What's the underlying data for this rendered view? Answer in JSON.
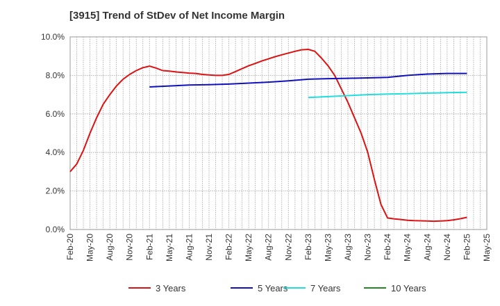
{
  "chart_data": {
    "type": "line",
    "title": "[3915]  Trend of StDev of Net Income Margin",
    "xlabel": "",
    "ylabel": "",
    "x_ticks": [
      "Feb-20",
      "May-20",
      "Aug-20",
      "Nov-20",
      "Feb-21",
      "May-21",
      "Aug-21",
      "Nov-21",
      "Feb-22",
      "May-22",
      "Aug-22",
      "Nov-22",
      "Feb-23",
      "May-23",
      "Aug-23",
      "Nov-23",
      "Feb-24",
      "May-24",
      "Aug-24",
      "Nov-24",
      "Feb-25",
      "May-25"
    ],
    "y_ticks": [
      "0.0%",
      "2.0%",
      "4.0%",
      "6.0%",
      "8.0%",
      "10.0%"
    ],
    "ylim": [
      0,
      10
    ],
    "grid": true,
    "legend_position": "bottom",
    "series": [
      {
        "name": "3 Years",
        "color": "#dd1111",
        "x": [
          "2020-02",
          "2020-03",
          "2020-04",
          "2020-05",
          "2020-06",
          "2020-07",
          "2020-08",
          "2020-09",
          "2020-10",
          "2020-11",
          "2020-12",
          "2021-01",
          "2021-02",
          "2021-03",
          "2021-04",
          "2021-05",
          "2021-06",
          "2021-07",
          "2021-08",
          "2021-09",
          "2021-10",
          "2021-11",
          "2021-12",
          "2022-01",
          "2022-02",
          "2022-03",
          "2022-04",
          "2022-05",
          "2022-06",
          "2022-07",
          "2022-08",
          "2022-09",
          "2022-10",
          "2022-11",
          "2022-12",
          "2023-01",
          "2023-02",
          "2023-03",
          "2023-04",
          "2023-05",
          "2023-06",
          "2023-07",
          "2023-08",
          "2023-09",
          "2023-10",
          "2023-11",
          "2023-12",
          "2024-01",
          "2024-02",
          "2024-03",
          "2024-04",
          "2024-05",
          "2024-06",
          "2024-07",
          "2024-08",
          "2024-09",
          "2024-10",
          "2024-11",
          "2024-12",
          "2025-01",
          "2025-02"
        ],
        "values": [
          3.0,
          3.4,
          4.1,
          5.0,
          5.8,
          6.5,
          7.0,
          7.45,
          7.8,
          8.05,
          8.25,
          8.4,
          8.48,
          8.38,
          8.25,
          8.22,
          8.18,
          8.15,
          8.12,
          8.1,
          8.05,
          8.02,
          8.0,
          8.0,
          8.05,
          8.2,
          8.35,
          8.5,
          8.62,
          8.75,
          8.86,
          8.97,
          9.07,
          9.16,
          9.25,
          9.33,
          9.35,
          9.25,
          8.9,
          8.5,
          8.0,
          7.3,
          6.6,
          5.8,
          5.0,
          4.0,
          2.6,
          1.3,
          0.6,
          0.55,
          0.52,
          0.48,
          0.46,
          0.45,
          0.44,
          0.43,
          0.44,
          0.46,
          0.5,
          0.56,
          0.63
        ]
      },
      {
        "name": "5 Years",
        "color": "#1111bb",
        "x": [
          "2021-02",
          "2021-05",
          "2021-08",
          "2021-11",
          "2022-02",
          "2022-05",
          "2022-08",
          "2022-11",
          "2023-02",
          "2023-05",
          "2023-08",
          "2023-11",
          "2024-02",
          "2024-05",
          "2024-08",
          "2024-11",
          "2025-02"
        ],
        "values": [
          7.4,
          7.45,
          7.5,
          7.52,
          7.55,
          7.6,
          7.65,
          7.72,
          7.8,
          7.83,
          7.85,
          7.87,
          7.9,
          8.0,
          8.07,
          8.1,
          8.1
        ]
      },
      {
        "name": "7 Years",
        "color": "#22dddd",
        "x": [
          "2023-02",
          "2023-05",
          "2023-08",
          "2023-11",
          "2024-02",
          "2024-05",
          "2024-08",
          "2024-11",
          "2025-02"
        ],
        "values": [
          6.85,
          6.9,
          6.95,
          7.0,
          7.03,
          7.05,
          7.08,
          7.1,
          7.12
        ]
      },
      {
        "name": "10 Years",
        "color": "#228822",
        "x": [],
        "values": []
      }
    ]
  }
}
